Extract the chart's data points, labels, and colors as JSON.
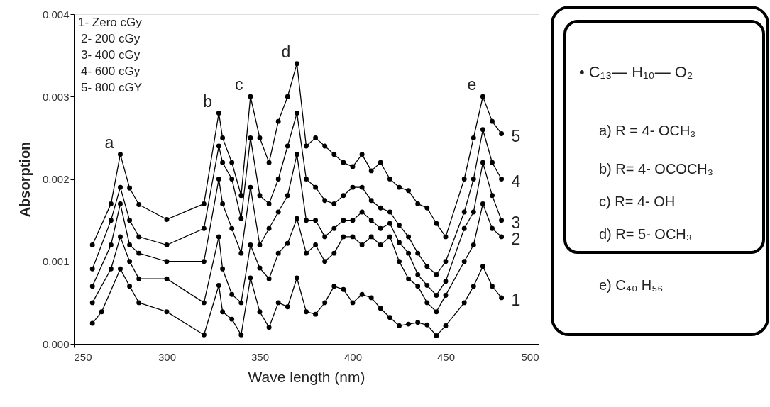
{
  "chart_data": {
    "type": "line",
    "xlabel": "Wave length (nm)",
    "ylabel": "Absorption",
    "xlim": [
      250,
      500
    ],
    "xticks": [
      250,
      300,
      350,
      400,
      450,
      500
    ],
    "ylim": [
      0,
      0.004
    ],
    "yticks": [
      {
        "value": 0,
        "label": "0.000"
      },
      {
        "value": 0.001,
        "label": "0.001"
      },
      {
        "value": 0.002,
        "label": "0.002"
      },
      {
        "value": 0.003,
        "label": "0.003"
      },
      {
        "value": 0.004,
        "label": "0.004"
      }
    ],
    "grid": false,
    "marker": "circle",
    "line_style": "solid",
    "series": [
      {
        "name": "1",
        "color": "#000000",
        "x": [
          260,
          265,
          275,
          280,
          285,
          300,
          320,
          328,
          330,
          335,
          340,
          345,
          350,
          355,
          360,
          365,
          370,
          375,
          380,
          385,
          390,
          395,
          400,
          405,
          410,
          415,
          420,
          425,
          430,
          435,
          440,
          445,
          450,
          460,
          465,
          470,
          475,
          480
        ],
        "values": [
          0.00025,
          0.00039,
          0.00091,
          0.0007,
          0.0005,
          0.00039,
          0.00011,
          0.00071,
          0.00039,
          0.0003,
          0.00011,
          0.0008,
          0.00039,
          0.0002,
          0.0005,
          0.00045,
          0.0008,
          0.00039,
          0.00036,
          0.0005,
          0.0007,
          0.00066,
          0.0005,
          0.0006,
          0.00056,
          0.00043,
          0.00032,
          0.00022,
          0.00024,
          0.00026,
          0.00023,
          0.0001,
          0.00022,
          0.0005,
          0.0007,
          0.00094,
          0.0007,
          0.00056
        ]
      },
      {
        "name": "2",
        "color": "#000000",
        "x": [
          260,
          270,
          275,
          280,
          285,
          300,
          320,
          328,
          330,
          335,
          340,
          345,
          350,
          355,
          360,
          365,
          370,
          375,
          380,
          385,
          390,
          395,
          400,
          405,
          410,
          415,
          420,
          425,
          430,
          435,
          440,
          445,
          450,
          460,
          465,
          470,
          475,
          480
        ],
        "values": [
          0.0005,
          0.00091,
          0.0013,
          0.001,
          0.00079,
          0.00079,
          0.0005,
          0.0013,
          0.00091,
          0.0006,
          0.0005,
          0.0012,
          0.00092,
          0.00079,
          0.0011,
          0.00122,
          0.00152,
          0.0011,
          0.0012,
          0.001,
          0.0011,
          0.0013,
          0.0013,
          0.0012,
          0.0013,
          0.0012,
          0.0013,
          0.001,
          0.00079,
          0.0007,
          0.0005,
          0.00039,
          0.00059,
          0.001,
          0.0012,
          0.0017,
          0.0014,
          0.0013
        ]
      },
      {
        "name": "3",
        "color": "#000000",
        "x": [
          260,
          270,
          275,
          280,
          285,
          300,
          320,
          328,
          330,
          335,
          340,
          345,
          350,
          355,
          360,
          365,
          370,
          375,
          380,
          385,
          390,
          395,
          400,
          405,
          410,
          415,
          420,
          425,
          430,
          435,
          440,
          445,
          450,
          460,
          465,
          470,
          475,
          480
        ],
        "values": [
          0.0007,
          0.0012,
          0.0017,
          0.0012,
          0.0011,
          0.001,
          0.001,
          0.002,
          0.0017,
          0.0014,
          0.0011,
          0.0019,
          0.0012,
          0.0014,
          0.0016,
          0.0018,
          0.0023,
          0.0015,
          0.0015,
          0.0013,
          0.0014,
          0.0015,
          0.0015,
          0.0016,
          0.0015,
          0.0014,
          0.00146,
          0.00123,
          0.0011,
          0.00084,
          0.00071,
          0.00059,
          0.00076,
          0.0014,
          0.0016,
          0.0022,
          0.0018,
          0.0015
        ]
      },
      {
        "name": "4",
        "color": "#000000",
        "x": [
          260,
          270,
          275,
          280,
          285,
          300,
          320,
          328,
          330,
          335,
          340,
          345,
          350,
          355,
          360,
          365,
          370,
          375,
          380,
          385,
          390,
          395,
          400,
          405,
          410,
          415,
          420,
          425,
          430,
          435,
          440,
          445,
          450,
          460,
          465,
          470,
          475,
          480
        ],
        "values": [
          0.00091,
          0.0015,
          0.0019,
          0.0015,
          0.0013,
          0.0012,
          0.0014,
          0.0024,
          0.0022,
          0.002,
          0.00152,
          0.0025,
          0.0018,
          0.0017,
          0.002,
          0.0024,
          0.0028,
          0.002,
          0.0019,
          0.00174,
          0.0017,
          0.0018,
          0.0019,
          0.0019,
          0.00174,
          0.00165,
          0.0016,
          0.00144,
          0.0013,
          0.0011,
          0.00094,
          0.00084,
          0.001,
          0.0016,
          0.002,
          0.0026,
          0.0022,
          0.002
        ]
      },
      {
        "name": "5",
        "color": "#000000",
        "x": [
          260,
          270,
          275,
          280,
          285,
          300,
          320,
          328,
          330,
          335,
          340,
          345,
          350,
          355,
          360,
          365,
          370,
          375,
          380,
          385,
          390,
          395,
          400,
          405,
          410,
          415,
          420,
          425,
          430,
          435,
          440,
          445,
          450,
          460,
          465,
          470,
          475,
          480
        ],
        "values": [
          0.0012,
          0.0017,
          0.0023,
          0.00189,
          0.00169,
          0.00151,
          0.0017,
          0.0028,
          0.0025,
          0.0022,
          0.0018,
          0.003,
          0.0025,
          0.0022,
          0.0027,
          0.003,
          0.0034,
          0.0024,
          0.0025,
          0.0024,
          0.0023,
          0.0022,
          0.00215,
          0.0023,
          0.0021,
          0.0022,
          0.002,
          0.0019,
          0.00186,
          0.0017,
          0.00165,
          0.00146,
          0.0013,
          0.002,
          0.0025,
          0.003,
          0.0027,
          0.00255
        ]
      }
    ],
    "annotations": [
      "1- Zero cGy",
      "2- 200 cGy",
      "3- 400 cGy",
      "4- 600 cGy",
      "5- 800 cGY",
      "• C₁₃— H₁₀— O₂",
      "a) R = 4- OCH₃",
      "b) R= 4- OCOCH₃",
      "c) R= 4- OH",
      "d) R= 5- OCH₃",
      "e) C₄₀ H₅₆",
      {
        "text": "a",
        "x": 275,
        "y": 0.0023
      },
      {
        "text": "b",
        "x": 328,
        "y": 0.0028
      },
      {
        "text": "c",
        "x": 345,
        "y": 0.003
      },
      {
        "text": "d",
        "x": 370,
        "y": 0.0034
      },
      {
        "text": "e",
        "x": 470,
        "y": 0.003
      }
    ]
  }
}
